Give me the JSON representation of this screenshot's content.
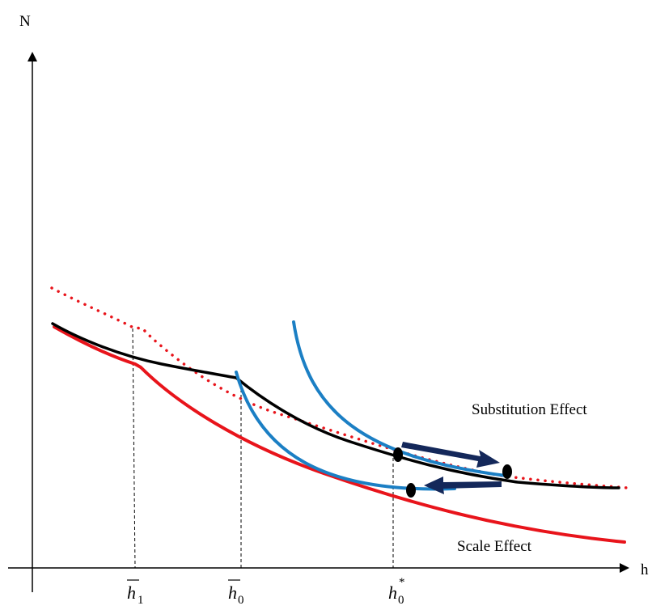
{
  "axes": {
    "y_label": "N",
    "x_label": "h"
  },
  "ticks": [
    {
      "base": "h",
      "bar": true,
      "sub": "1",
      "sup": ""
    },
    {
      "base": "h",
      "bar": true,
      "sub": "0",
      "sup": ""
    },
    {
      "base": "h",
      "bar": false,
      "sub": "0",
      "sup": "*"
    }
  ],
  "annotations": {
    "substitution": "Substitution Effect",
    "scale": "Scale Effect"
  },
  "colors": {
    "axis": "#000000",
    "black_curve": "#000000",
    "red_curve": "#e8141b",
    "red_dotted": "#e8141b",
    "blue_curve": "#1b7fc4",
    "arrow": "#14285a"
  }
}
